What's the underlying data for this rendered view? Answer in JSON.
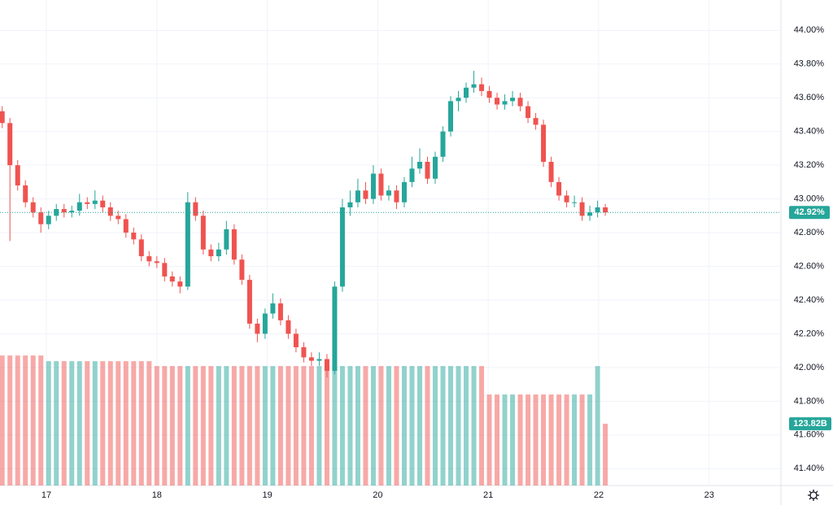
{
  "chart_data": {
    "type": "candlestick",
    "up_color": "#26a69a",
    "down_color": "#ef5350",
    "grid": true,
    "x": [
      16.6,
      16.67,
      16.74,
      16.81,
      16.88,
      16.95,
      17.02,
      17.09,
      17.16,
      17.23,
      17.3,
      17.37,
      17.44,
      17.51,
      17.58,
      17.65,
      17.72,
      17.79,
      17.86,
      17.93,
      18.0,
      18.07,
      18.14,
      18.21,
      18.28,
      18.35,
      18.42,
      18.49,
      18.56,
      18.63,
      18.7,
      18.77,
      18.84,
      18.91,
      18.98,
      19.05,
      19.12,
      19.19,
      19.26,
      19.33,
      19.4,
      19.47,
      19.54,
      19.61,
      19.68,
      19.75,
      19.82,
      19.89,
      19.96,
      20.03,
      20.1,
      20.17,
      20.24,
      20.31,
      20.38,
      20.45,
      20.52,
      20.59,
      20.66,
      20.73,
      20.8,
      20.87,
      20.94,
      21.01,
      21.08,
      21.15,
      21.22,
      21.29,
      21.36,
      21.43,
      21.5,
      21.57,
      21.64,
      21.71,
      21.78,
      21.85,
      21.92,
      21.99,
      22.06
    ],
    "open": [
      43.52,
      43.45,
      43.2,
      43.08,
      42.98,
      42.92,
      42.85,
      42.9,
      42.94,
      42.92,
      42.93,
      42.98,
      42.97,
      42.99,
      42.95,
      42.9,
      42.88,
      42.8,
      42.76,
      42.66,
      42.63,
      42.62,
      42.54,
      42.51,
      42.48,
      42.98,
      42.9,
      42.7,
      42.66,
      42.7,
      42.82,
      42.64,
      42.52,
      42.26,
      42.2,
      42.32,
      42.38,
      42.28,
      42.2,
      42.12,
      42.06,
      42.04,
      42.05,
      41.98,
      42.48,
      42.95,
      42.98,
      43.05,
      43.0,
      43.15,
      43.02,
      43.05,
      42.98,
      43.1,
      43.18,
      43.22,
      43.12,
      43.25,
      43.4,
      43.58,
      43.6,
      43.66,
      43.68,
      43.64,
      43.6,
      43.56,
      43.58,
      43.6,
      43.55,
      43.48,
      43.44,
      43.22,
      43.1,
      43.02,
      42.98,
      42.98,
      42.9,
      42.92,
      42.95
    ],
    "high": [
      43.55,
      43.48,
      43.23,
      43.11,
      43.01,
      42.95,
      42.93,
      42.97,
      42.97,
      42.96,
      43.03,
      43.01,
      43.05,
      43.02,
      42.98,
      42.93,
      42.91,
      42.83,
      42.79,
      42.69,
      42.66,
      42.65,
      42.57,
      42.54,
      43.04,
      43.01,
      42.93,
      42.73,
      42.74,
      42.87,
      42.85,
      42.67,
      42.55,
      42.29,
      42.35,
      42.44,
      42.41,
      42.31,
      42.23,
      42.15,
      42.09,
      42.09,
      42.08,
      42.51,
      43.0,
      43.05,
      43.12,
      43.1,
      43.2,
      43.18,
      43.08,
      43.08,
      43.13,
      43.25,
      43.3,
      43.25,
      43.28,
      43.43,
      43.61,
      43.64,
      43.69,
      43.76,
      43.72,
      43.67,
      43.63,
      43.62,
      43.64,
      43.63,
      43.58,
      43.51,
      43.47,
      43.25,
      43.13,
      43.05,
      43.02,
      43.01,
      42.96,
      42.99,
      42.97
    ],
    "low": [
      43.42,
      42.75,
      43.05,
      42.95,
      42.89,
      42.8,
      42.82,
      42.87,
      42.89,
      42.89,
      42.9,
      42.94,
      42.94,
      42.92,
      42.87,
      42.85,
      42.77,
      42.73,
      42.63,
      42.6,
      42.59,
      42.51,
      42.48,
      42.44,
      42.46,
      42.87,
      42.67,
      42.63,
      42.63,
      42.67,
      42.61,
      42.49,
      42.23,
      42.15,
      42.17,
      42.29,
      42.25,
      42.17,
      42.09,
      42.03,
      42.01,
      42.01,
      41.94,
      41.96,
      42.45,
      42.9,
      42.95,
      42.97,
      42.97,
      42.99,
      42.99,
      42.94,
      42.95,
      43.07,
      43.15,
      43.09,
      43.09,
      43.22,
      43.37,
      43.52,
      43.57,
      43.63,
      43.61,
      43.57,
      43.53,
      43.53,
      43.55,
      43.52,
      43.45,
      43.41,
      43.19,
      43.07,
      42.99,
      42.95,
      42.95,
      42.87,
      42.87,
      42.89,
      42.9
    ],
    "close": [
      43.45,
      43.2,
      43.08,
      42.98,
      42.92,
      42.85,
      42.9,
      42.94,
      42.92,
      42.93,
      42.98,
      42.97,
      42.99,
      42.95,
      42.9,
      42.88,
      42.8,
      42.76,
      42.66,
      42.63,
      42.62,
      42.54,
      42.51,
      42.48,
      42.98,
      42.9,
      42.7,
      42.66,
      42.7,
      42.82,
      42.64,
      42.52,
      42.26,
      42.2,
      42.32,
      42.38,
      42.28,
      42.2,
      42.12,
      42.06,
      42.04,
      42.05,
      41.98,
      42.48,
      42.95,
      42.98,
      43.05,
      43.0,
      43.15,
      43.02,
      43.05,
      42.98,
      43.1,
      43.18,
      43.22,
      43.12,
      43.25,
      43.4,
      43.58,
      43.6,
      43.66,
      43.68,
      43.64,
      43.6,
      43.56,
      43.58,
      43.6,
      43.55,
      43.48,
      43.44,
      43.22,
      43.1,
      43.02,
      42.98,
      42.98,
      42.9,
      42.92,
      42.95,
      42.92
    ],
    "volume": [
      260.7,
      260.7,
      260.7,
      260.7,
      260.7,
      260.7,
      249.3,
      249.3,
      249.3,
      249.3,
      249.3,
      249.3,
      249.3,
      249.3,
      249.3,
      249.3,
      249.3,
      249.3,
      249.3,
      249.3,
      239.5,
      239.5,
      239.5,
      239.5,
      239.5,
      239.5,
      239.5,
      239.5,
      239.5,
      239.5,
      239.5,
      239.5,
      239.5,
      239.5,
      239.5,
      239.5,
      239.5,
      239.5,
      239.5,
      239.5,
      239.5,
      239.5,
      239.5,
      239.5,
      239.5,
      239.5,
      239.5,
      239.5,
      239.5,
      239.5,
      239.5,
      239.5,
      239.5,
      239.5,
      239.5,
      239.5,
      239.5,
      239.5,
      239.5,
      239.5,
      239.5,
      239.5,
      239.5,
      182.5,
      182.5,
      182.5,
      182.5,
      182.5,
      182.5,
      182.5,
      182.5,
      182.5,
      182.5,
      182.5,
      182.5,
      182.5,
      182.5,
      239.5,
      123.82
    ],
    "volume_lim": [
      0,
      380
    ],
    "volume_last_label": "123.82B",
    "last_price": {
      "value": 42.92,
      "label": "42.92%"
    },
    "xlim": [
      16.58,
      23.65
    ],
    "xticks": [
      17,
      18,
      19,
      20,
      21,
      22,
      23
    ],
    "ylim": [
      41.3,
      44.18
    ],
    "yticks": [
      {
        "value": 41.4,
        "label": "41.40%"
      },
      {
        "value": 41.6,
        "label": "41.60%"
      },
      {
        "value": 41.8,
        "label": "41.80%"
      },
      {
        "value": 42.0,
        "label": "42.00%"
      },
      {
        "value": 42.2,
        "label": "42.20%"
      },
      {
        "value": 42.4,
        "label": "42.40%"
      },
      {
        "value": 42.6,
        "label": "42.60%"
      },
      {
        "value": 42.8,
        "label": "42.80%"
      },
      {
        "value": 43.0,
        "label": "43.00%"
      },
      {
        "value": 43.2,
        "label": "43.20%"
      },
      {
        "value": 43.4,
        "label": "43.40%"
      },
      {
        "value": 43.6,
        "label": "43.60%"
      },
      {
        "value": 43.8,
        "label": "43.80%"
      },
      {
        "value": 44.0,
        "label": "44.00%"
      }
    ]
  }
}
